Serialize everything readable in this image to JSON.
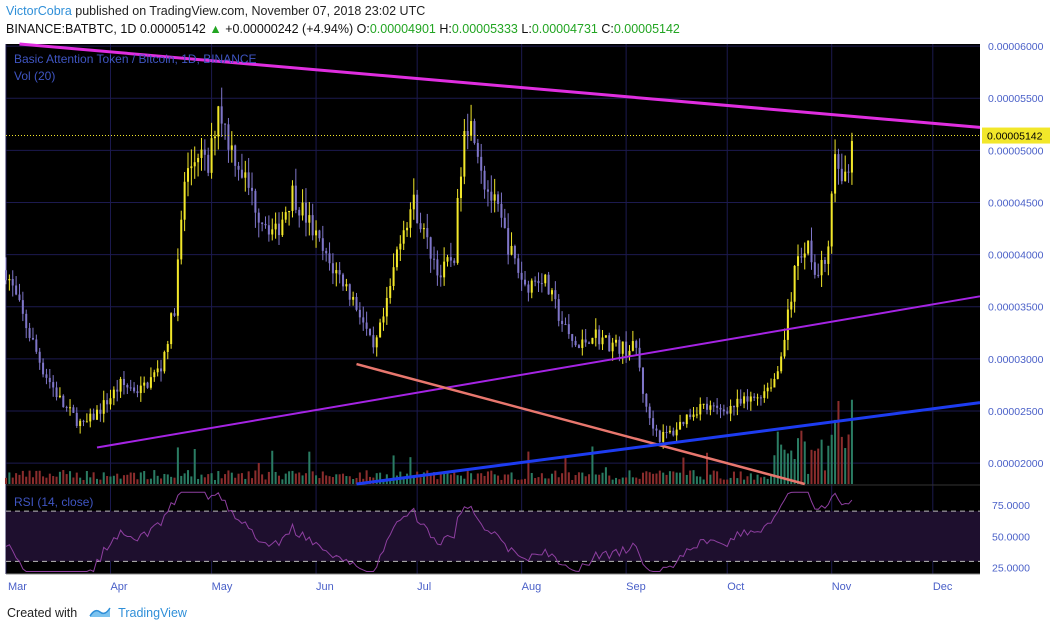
{
  "header": {
    "author": "VictorCobra",
    "published_text": "published on TradingView.com, November 07, 2018 23:02 UTC",
    "symbol": "BINANCE:BATBTC, 1D",
    "close_val": "0.00005142",
    "change": "+0.00000242 (+4.94%)",
    "o_label": "O:",
    "o_val": "0.00004901",
    "h_label": "H:",
    "h_val": "0.00005333",
    "l_label": "L:",
    "l_val": "0.00004731",
    "c_label": "C:",
    "c_val": "0.00005142"
  },
  "footer": {
    "created_with": "Created with",
    "brand": "TradingView"
  },
  "colors": {
    "background": "#000000",
    "grid": "#1c1a4f",
    "candle_up": "#f2e72a",
    "candle_down": "#7f76c9",
    "vol_up": "#2a7c63",
    "vol_down": "#8b2d2d",
    "rsi_line": "#8e3fa0",
    "rsi_band": "#1e0f2e",
    "axis_text": "#4a60c8",
    "trend_magenta": "#e02ee0",
    "trend_purple": "#a524e4",
    "trend_salmon": "#e8776e",
    "trend_blue": "#1d3cf0",
    "price_label_bg": "#f2e72a"
  },
  "chart_data": {
    "type": "candlestick",
    "title": "Basic Attention Token / Bitcoin, 1D, BINANCE",
    "volume_label": "Vol (20)",
    "rsi_label": "RSI (14, close)",
    "price_axis_ticks": [
      "0.00006000",
      "0.00005500",
      "0.00005000",
      "0.00004500",
      "0.00004000",
      "0.00003500",
      "0.00003000",
      "0.00002500",
      "0.00002000"
    ],
    "price_ylim": [
      1.8e-05,
      6.02e-05
    ],
    "current_price_label": "0.00005142",
    "current_price": 5.142e-05,
    "rsi_ticks": [
      "75.0000",
      "50.0000",
      "25.0000"
    ],
    "rsi_levels": [
      70,
      30
    ],
    "rsi_ylim": [
      20,
      90
    ],
    "x_labels": [
      "Mar",
      "Apr",
      "May",
      "Jun",
      "Jul",
      "Aug",
      "Sep",
      "Oct",
      "Nov",
      "Dec"
    ],
    "x_range": [
      "2018-03-01",
      "2018-12-15"
    ],
    "close_series": [
      [
        "2018-03-01",
        3.85e-05
      ],
      [
        "2018-03-06",
        3.4e-05
      ],
      [
        "2018-03-12",
        2.9e-05
      ],
      [
        "2018-03-18",
        2.55e-05
      ],
      [
        "2018-03-24",
        2.35e-05
      ],
      [
        "2018-03-29",
        2.52e-05
      ],
      [
        "2018-04-04",
        2.75e-05
      ],
      [
        "2018-04-10",
        2.7e-05
      ],
      [
        "2018-04-16",
        2.92e-05
      ],
      [
        "2018-04-20",
        3.5e-05
      ],
      [
        "2018-04-23",
        4.7e-05
      ],
      [
        "2018-04-27",
        5e-05
      ],
      [
        "2018-04-30",
        4.8e-05
      ],
      [
        "2018-05-03",
        5.45e-05
      ],
      [
        "2018-05-06",
        5.1e-05
      ],
      [
        "2018-05-10",
        4.8e-05
      ],
      [
        "2018-05-15",
        4.4e-05
      ],
      [
        "2018-05-20",
        4.2e-05
      ],
      [
        "2018-05-25",
        4.6e-05
      ],
      [
        "2018-05-30",
        4.3e-05
      ],
      [
        "2018-06-04",
        3.95e-05
      ],
      [
        "2018-06-09",
        3.75e-05
      ],
      [
        "2018-06-14",
        3.45e-05
      ],
      [
        "2018-06-18",
        3.05e-05
      ],
      [
        "2018-06-22",
        3.5e-05
      ],
      [
        "2018-06-26",
        4.2e-05
      ],
      [
        "2018-06-30",
        4.5e-05
      ],
      [
        "2018-07-04",
        4.1e-05
      ],
      [
        "2018-07-08",
        3.8e-05
      ],
      [
        "2018-07-12",
        4e-05
      ],
      [
        "2018-07-15",
        5.3e-05
      ],
      [
        "2018-07-18",
        5.2e-05
      ],
      [
        "2018-07-21",
        4.7e-05
      ],
      [
        "2018-07-25",
        4.4e-05
      ],
      [
        "2018-07-29",
        4e-05
      ],
      [
        "2018-08-02",
        3.7e-05
      ],
      [
        "2018-08-07",
        3.8e-05
      ],
      [
        "2018-08-11",
        3.5e-05
      ],
      [
        "2018-08-15",
        3.2e-05
      ],
      [
        "2018-08-18",
        3.1e-05
      ],
      [
        "2018-08-22",
        3.25e-05
      ],
      [
        "2018-08-27",
        3.15e-05
      ],
      [
        "2018-08-31",
        3.1e-05
      ],
      [
        "2018-09-04",
        3.1e-05
      ],
      [
        "2018-09-07",
        2.5e-05
      ],
      [
        "2018-09-11",
        2.25e-05
      ],
      [
        "2018-09-15",
        2.3e-05
      ],
      [
        "2018-09-19",
        2.45e-05
      ],
      [
        "2018-09-23",
        2.55e-05
      ],
      [
        "2018-09-28",
        2.5e-05
      ],
      [
        "2018-10-03",
        2.55e-05
      ],
      [
        "2018-10-08",
        2.6e-05
      ],
      [
        "2018-10-12",
        2.7e-05
      ],
      [
        "2018-10-16",
        2.85e-05
      ],
      [
        "2018-10-19",
        3.4e-05
      ],
      [
        "2018-10-22",
        4e-05
      ],
      [
        "2018-10-25",
        4.1e-05
      ],
      [
        "2018-10-28",
        3.8e-05
      ],
      [
        "2018-10-31",
        4e-05
      ],
      [
        "2018-11-02",
        5e-05
      ],
      [
        "2018-11-04",
        4.6e-05
      ],
      [
        "2018-11-06",
        4.9e-05
      ],
      [
        "2018-11-07",
        5.14e-05
      ]
    ],
    "trendlines": [
      {
        "color": "trend_magenta",
        "width": 3,
        "from": [
          "2018-03-05",
          6.02e-05
        ],
        "to": [
          "2018-12-15",
          5.22e-05
        ]
      },
      {
        "color": "trend_purple",
        "width": 2,
        "from": [
          "2018-03-28",
          2.15e-05
        ],
        "to": [
          "2018-12-15",
          3.6e-05
        ]
      },
      {
        "color": "trend_salmon",
        "width": 2.5,
        "from": [
          "2018-06-13",
          2.95e-05
        ],
        "to": [
          "2018-10-24",
          1.8e-05
        ]
      },
      {
        "color": "trend_blue",
        "width": 3,
        "from": [
          "2018-06-13",
          1.8e-05
        ],
        "to": [
          "2018-12-15",
          2.58e-05
        ]
      }
    ]
  }
}
